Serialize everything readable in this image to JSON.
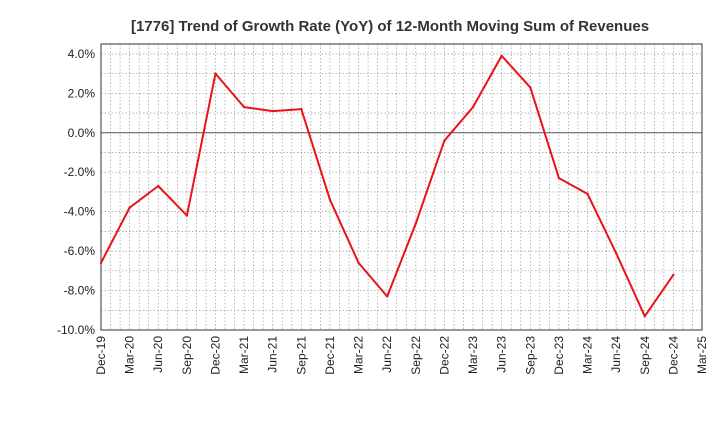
{
  "chart_data": {
    "type": "line",
    "title": "[1776]  Trend of Growth Rate (YoY) of 12-Month Moving Sum of Revenues",
    "xlabel": "",
    "ylabel": "",
    "ylim": [
      -10.0,
      4.5
    ],
    "yticks": [
      "4.0%",
      "2.0%",
      "0.0%",
      "-2.0%",
      "-4.0%",
      "-6.0%",
      "-8.0%",
      "-10.0%"
    ],
    "ytick_values": [
      4,
      2,
      0,
      -2,
      -4,
      -6,
      -8,
      -10
    ],
    "x_tick_labels": [
      "Dec-19",
      "Mar-20",
      "Jun-20",
      "Sep-20",
      "Dec-20",
      "Mar-21",
      "Jun-21",
      "Sep-21",
      "Dec-21",
      "Mar-22",
      "Jun-22",
      "Sep-22",
      "Dec-22",
      "Mar-23",
      "Jun-23",
      "Sep-23",
      "Dec-23",
      "Mar-24",
      "Jun-24",
      "Sep-24",
      "Dec-24",
      "Mar-25"
    ],
    "grid": true,
    "series": [
      {
        "color": "#e8141b",
        "x": [
          "Dec-19",
          "Mar-20",
          "Jun-20",
          "Sep-20",
          "Dec-20",
          "Mar-21",
          "Jun-21",
          "Sep-21",
          "Dec-21",
          "Mar-22",
          "Jun-22",
          "Sep-22",
          "Dec-22",
          "Mar-23",
          "Jun-23",
          "Sep-23",
          "Dec-23",
          "Mar-24",
          "Jun-24",
          "Sep-24",
          "Dec-24"
        ],
        "values": [
          -6.6,
          -3.8,
          -2.7,
          -4.2,
          3.0,
          1.3,
          1.1,
          1.2,
          -3.4,
          -6.6,
          -8.3,
          -4.6,
          -0.4,
          1.3,
          3.9,
          2.3,
          -2.3,
          -3.1,
          -6.1,
          -9.3,
          -7.2
        ]
      }
    ]
  }
}
